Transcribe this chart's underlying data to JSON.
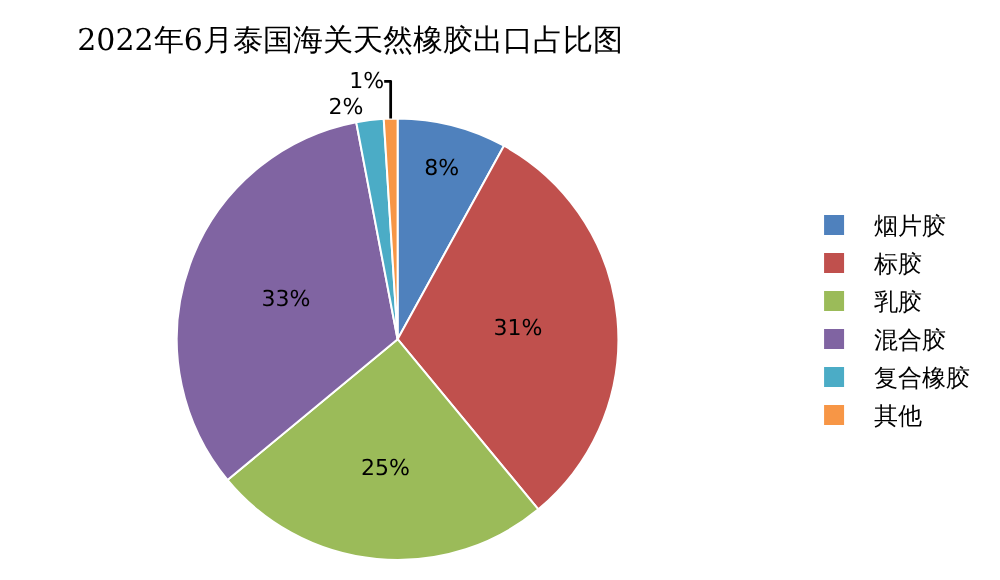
{
  "chart_data": {
    "type": "pie",
    "title": "2022年6月泰国海关天然橡胶出口占比图",
    "categories": [
      "烟片胶",
      "标胶",
      "乳胶",
      "混合胶",
      "复合橡胶",
      "其他"
    ],
    "values": [
      8,
      31,
      25,
      33,
      2,
      1
    ],
    "value_labels": [
      "8%",
      "31%",
      "25%",
      "33%",
      "2%",
      "1%"
    ],
    "colors": [
      "#4f81bd",
      "#c0504d",
      "#9bbb59",
      "#8064a2",
      "#4bacc6",
      "#f79646"
    ],
    "legend": "right"
  }
}
